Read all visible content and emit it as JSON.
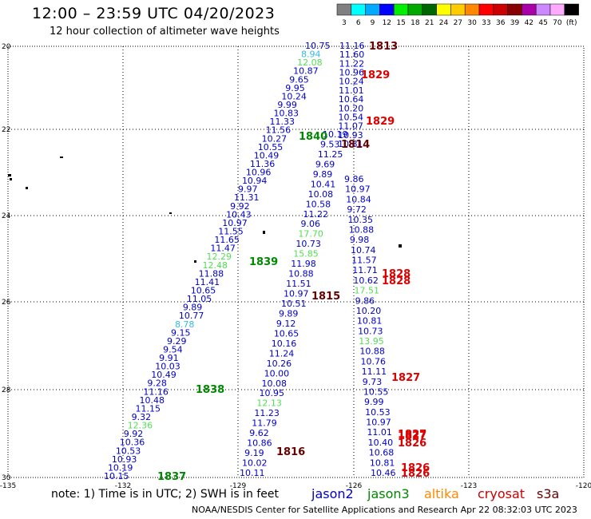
{
  "title": "12:00 – 23:59 UTC 04/20/2023",
  "subtitle": "12 hour collection of altimeter wave heights",
  "note": "note:  1) Time is in UTC;  2) SWH is in feet",
  "credit": "NOAA/NESDIS Center for Satellite Applications and Research    Apr 22 08:32:03 UTC 2023",
  "legend": {
    "jason2": "jason2",
    "jason3": "jason3",
    "altika": "altika",
    "cryosat": "cryosat",
    "s3a": "s3a"
  },
  "colorbar": {
    "labels": [
      "3",
      "6",
      "9",
      "12",
      "15",
      "18",
      "21",
      "24",
      "27",
      "30",
      "33",
      "36",
      "39",
      "42",
      "45",
      "70",
      "(ft)"
    ],
    "colors": [
      "#808080",
      "#00ffff",
      "#00aaff",
      "#0000ff",
      "#00ee00",
      "#00aa00",
      "#006600",
      "#ffff00",
      "#ffcc00",
      "#ff8800",
      "#ff0000",
      "#cc0000",
      "#880000",
      "#aa00aa",
      "#cc88ff",
      "#ffaaff",
      "#000000"
    ]
  },
  "map": {
    "lon_labels": [
      "-135",
      "-132",
      "-129",
      "-126",
      "-123",
      "-120"
    ],
    "lat_labels": [
      "20",
      "22",
      "24",
      "26",
      "28",
      "30"
    ]
  },
  "colors": {
    "jason2": "#0000cc",
    "jason3": "#008800",
    "cyan": "#33bbdd",
    "green": "#55dd55",
    "red": "#dd0000",
    "dark": "#660000"
  },
  "track_west": [
    {
      "v": "10.75",
      "c": "jason2"
    },
    {
      "v": "8.94",
      "c": "cyan"
    },
    {
      "v": "12.08",
      "c": "green"
    },
    {
      "v": "10.87",
      "c": "jason2"
    },
    {
      "v": "9.65",
      "c": "jason2"
    },
    {
      "v": "9.95",
      "c": "jason2"
    },
    {
      "v": "10.24",
      "c": "jason2"
    },
    {
      "v": "9.99",
      "c": "jason2"
    },
    {
      "v": "10.83",
      "c": "jason2"
    },
    {
      "v": "11.33",
      "c": "jason2"
    },
    {
      "v": "11.56",
      "c": "jason2"
    },
    {
      "v": "10.27",
      "c": "jason2"
    },
    {
      "v": "10.55",
      "c": "jason2"
    },
    {
      "v": "10.49",
      "c": "jason2"
    },
    {
      "v": "11.36",
      "c": "jason2"
    },
    {
      "v": "10.96",
      "c": "jason2"
    },
    {
      "v": "10.94",
      "c": "jason2"
    },
    {
      "v": "9.97",
      "c": "jason2"
    },
    {
      "v": "11.31",
      "c": "jason2"
    },
    {
      "v": "9.92",
      "c": "jason2"
    },
    {
      "v": "10.43",
      "c": "jason2"
    },
    {
      "v": "10.97",
      "c": "jason2"
    },
    {
      "v": "11.55",
      "c": "jason2"
    },
    {
      "v": "11.65",
      "c": "jason2"
    },
    {
      "v": "11.47",
      "c": "jason2"
    },
    {
      "v": "12.29",
      "c": "green"
    },
    {
      "v": "12.48",
      "c": "green"
    },
    {
      "v": "11.88",
      "c": "jason2"
    },
    {
      "v": "11.41",
      "c": "jason2"
    },
    {
      "v": "10.65",
      "c": "jason2"
    },
    {
      "v": "11.05",
      "c": "jason2"
    },
    {
      "v": "9.89",
      "c": "jason2"
    },
    {
      "v": "10.77",
      "c": "jason2"
    },
    {
      "v": "8.78",
      "c": "cyan"
    },
    {
      "v": "9.15",
      "c": "jason2"
    },
    {
      "v": "9.29",
      "c": "jason2"
    },
    {
      "v": "9.54",
      "c": "jason2"
    },
    {
      "v": "9.91",
      "c": "jason2"
    },
    {
      "v": "10.03",
      "c": "jason2"
    },
    {
      "v": "10.49",
      "c": "jason2"
    },
    {
      "v": "9.28",
      "c": "jason2"
    },
    {
      "v": "11.16",
      "c": "jason2"
    },
    {
      "v": "10.48",
      "c": "jason2"
    },
    {
      "v": "11.15",
      "c": "jason2"
    },
    {
      "v": "9.32",
      "c": "jason2"
    },
    {
      "v": "12.36",
      "c": "green"
    },
    {
      "v": "9.92",
      "c": "jason2"
    },
    {
      "v": "10.36",
      "c": "jason2"
    },
    {
      "v": "10.53",
      "c": "jason2"
    },
    {
      "v": "10.93",
      "c": "jason2"
    },
    {
      "v": "10.19",
      "c": "jason2"
    },
    {
      "v": "10.15",
      "c": "jason2"
    }
  ],
  "track_mid": [
    {
      "v": "10.19",
      "c": "jason2"
    },
    {
      "v": "9.53",
      "c": "jason2"
    },
    {
      "v": "11.25",
      "c": "jason2"
    },
    {
      "v": "9.69",
      "c": "jason2"
    },
    {
      "v": "9.89",
      "c": "jason2"
    },
    {
      "v": "10.41",
      "c": "jason2"
    },
    {
      "v": "10.08",
      "c": "jason2"
    },
    {
      "v": "10.58",
      "c": "jason2"
    },
    {
      "v": "11.22",
      "c": "jason2"
    },
    {
      "v": "9.06",
      "c": "jason2"
    },
    {
      "v": "17.70",
      "c": "green"
    },
    {
      "v": "10.73",
      "c": "jason2"
    },
    {
      "v": "15.85",
      "c": "green"
    },
    {
      "v": "11.98",
      "c": "jason2"
    },
    {
      "v": "10.88",
      "c": "jason2"
    },
    {
      "v": "11.51",
      "c": "jason2"
    },
    {
      "v": "10.97",
      "c": "jason2"
    },
    {
      "v": "10.51",
      "c": "jason2"
    },
    {
      "v": "9.89",
      "c": "jason2"
    },
    {
      "v": "9.12",
      "c": "jason2"
    },
    {
      "v": "10.65",
      "c": "jason2"
    },
    {
      "v": "10.16",
      "c": "jason2"
    },
    {
      "v": "11.24",
      "c": "jason2"
    },
    {
      "v": "10.26",
      "c": "jason2"
    },
    {
      "v": "10.00",
      "c": "jason2"
    },
    {
      "v": "10.08",
      "c": "jason2"
    },
    {
      "v": "10.95",
      "c": "jason2"
    },
    {
      "v": "12.13",
      "c": "green"
    },
    {
      "v": "11.23",
      "c": "jason2"
    },
    {
      "v": "11.79",
      "c": "jason2"
    },
    {
      "v": "9.62",
      "c": "jason2"
    },
    {
      "v": "10.86",
      "c": "jason2"
    },
    {
      "v": "9.19",
      "c": "jason2"
    },
    {
      "v": "10.02",
      "c": "jason2"
    },
    {
      "v": "10.11",
      "c": "jason2"
    }
  ],
  "track_east_top": [
    {
      "v": "11.16",
      "c": "jason2"
    },
    {
      "v": "11.60",
      "c": "jason2"
    },
    {
      "v": "11.22",
      "c": "jason2"
    },
    {
      "v": "10.96",
      "c": "jason2"
    },
    {
      "v": "10.24",
      "c": "jason2"
    },
    {
      "v": "11.01",
      "c": "jason2"
    },
    {
      "v": "10.64",
      "c": "jason2"
    },
    {
      "v": "10.20",
      "c": "jason2"
    },
    {
      "v": "10.54",
      "c": "jason2"
    },
    {
      "v": "11.07",
      "c": "jason2"
    },
    {
      "v": "10.93",
      "c": "jason2"
    },
    {
      "v": "10.81",
      "c": "jason2"
    }
  ],
  "track_east": [
    {
      "v": "9.86",
      "c": "jason2"
    },
    {
      "v": "10.97",
      "c": "jason2"
    },
    {
      "v": "10.84",
      "c": "jason2"
    },
    {
      "v": "9.72",
      "c": "jason2"
    },
    {
      "v": "10.35",
      "c": "jason2"
    },
    {
      "v": "10.88",
      "c": "jason2"
    },
    {
      "v": "9.98",
      "c": "jason2"
    },
    {
      "v": "10.74",
      "c": "jason2"
    },
    {
      "v": "11.57",
      "c": "jason2"
    },
    {
      "v": "11.71",
      "c": "jason2"
    },
    {
      "v": "10.62",
      "c": "jason2"
    },
    {
      "v": "17.51",
      "c": "green"
    },
    {
      "v": "9.86",
      "c": "jason2"
    },
    {
      "v": "10.20",
      "c": "jason2"
    },
    {
      "v": "10.81",
      "c": "jason2"
    },
    {
      "v": "10.73",
      "c": "jason2"
    },
    {
      "v": "13.95",
      "c": "green"
    },
    {
      "v": "10.88",
      "c": "jason2"
    },
    {
      "v": "10.76",
      "c": "jason2"
    },
    {
      "v": "11.11",
      "c": "jason2"
    },
    {
      "v": "9.73",
      "c": "jason2"
    },
    {
      "v": "10.55",
      "c": "jason2"
    },
    {
      "v": "9.99",
      "c": "jason2"
    },
    {
      "v": "10.53",
      "c": "jason2"
    },
    {
      "v": "10.97",
      "c": "jason2"
    },
    {
      "v": "11.01",
      "c": "jason2"
    },
    {
      "v": "10.40",
      "c": "jason2"
    },
    {
      "v": "10.68",
      "c": "jason2"
    },
    {
      "v": "10.81",
      "c": "jason2"
    },
    {
      "v": "10.46",
      "c": "jason2"
    }
  ],
  "times": [
    {
      "t": "1813",
      "c": "dark"
    },
    {
      "t": "1829",
      "c": "red"
    },
    {
      "t": "1829",
      "c": "red"
    },
    {
      "t": "1840",
      "c": "jason3"
    },
    {
      "t": "1814",
      "c": "dark"
    },
    {
      "t": "1839",
      "c": "jason3"
    },
    {
      "t": "1828",
      "c": "red"
    },
    {
      "t": "1828",
      "c": "red"
    },
    {
      "t": "1815",
      "c": "dark"
    },
    {
      "t": "1827",
      "c": "red"
    },
    {
      "t": "1838",
      "c": "jason3"
    },
    {
      "t": "1827",
      "c": "red"
    },
    {
      "t": "1827",
      "c": "red"
    },
    {
      "t": "1826",
      "c": "red"
    },
    {
      "t": "1816",
      "c": "dark"
    },
    {
      "t": "1826",
      "c": "red"
    },
    {
      "t": "1826",
      "c": "red"
    },
    {
      "t": "1837",
      "c": "jason3"
    }
  ]
}
